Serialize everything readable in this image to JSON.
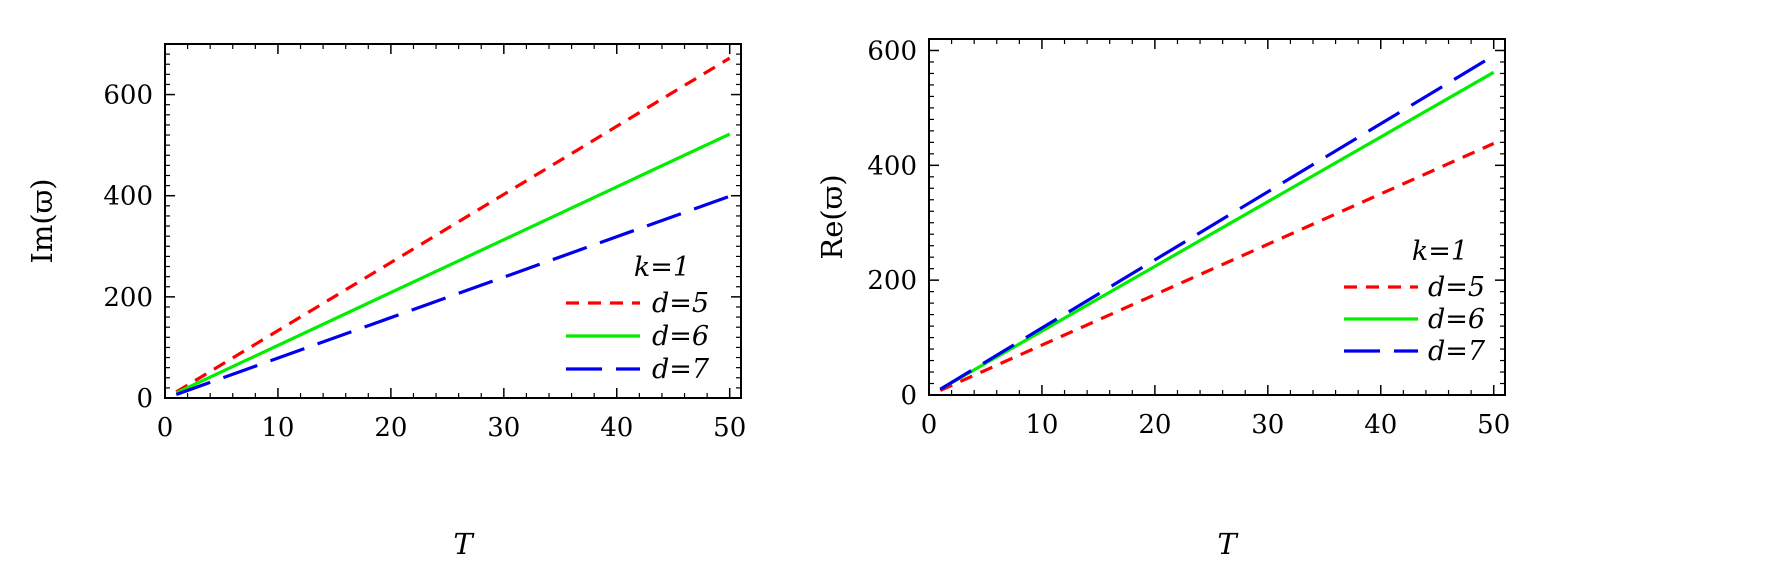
{
  "chart_data": [
    {
      "type": "line",
      "title": "",
      "xlabel": "T",
      "ylabel": "Im(ϖ)",
      "xlim": [
        0,
        51
      ],
      "ylim": [
        0,
        700
      ],
      "xticks": [
        0,
        10,
        20,
        30,
        40,
        50
      ],
      "yticks": [
        0,
        200,
        400,
        600
      ],
      "grid": false,
      "legend_title": "k=1",
      "legend_position": "bottom-right",
      "series": [
        {
          "name": "d=5",
          "style": "short-dash",
          "color": "#ff0000",
          "x": [
            1,
            50
          ],
          "y": [
            12,
            672
          ]
        },
        {
          "name": "d=6",
          "style": "solid",
          "color": "#00ee00",
          "x": [
            1,
            50
          ],
          "y": [
            10,
            522
          ]
        },
        {
          "name": "d=7",
          "style": "long-dash",
          "color": "#0000ee",
          "x": [
            1,
            50
          ],
          "y": [
            7,
            399
          ]
        }
      ]
    },
    {
      "type": "line",
      "title": "",
      "xlabel": "T",
      "ylabel": "Re(ϖ)",
      "xlim": [
        0,
        51
      ],
      "ylim": [
        0,
        620
      ],
      "xticks": [
        0,
        10,
        20,
        30,
        40,
        50
      ],
      "yticks": [
        0,
        200,
        400,
        600
      ],
      "grid": false,
      "legend_title": "k=1",
      "legend_position": "bottom-right",
      "series": [
        {
          "name": "d=5",
          "style": "short-dash",
          "color": "#ff0000",
          "x": [
            1,
            50
          ],
          "y": [
            8,
            438
          ]
        },
        {
          "name": "d=6",
          "style": "solid",
          "color": "#00ee00",
          "x": [
            1,
            50
          ],
          "y": [
            10,
            562
          ]
        },
        {
          "name": "d=7",
          "style": "long-dash",
          "color": "#0000ee",
          "x": [
            1,
            50
          ],
          "y": [
            10,
            591
          ]
        }
      ]
    }
  ]
}
